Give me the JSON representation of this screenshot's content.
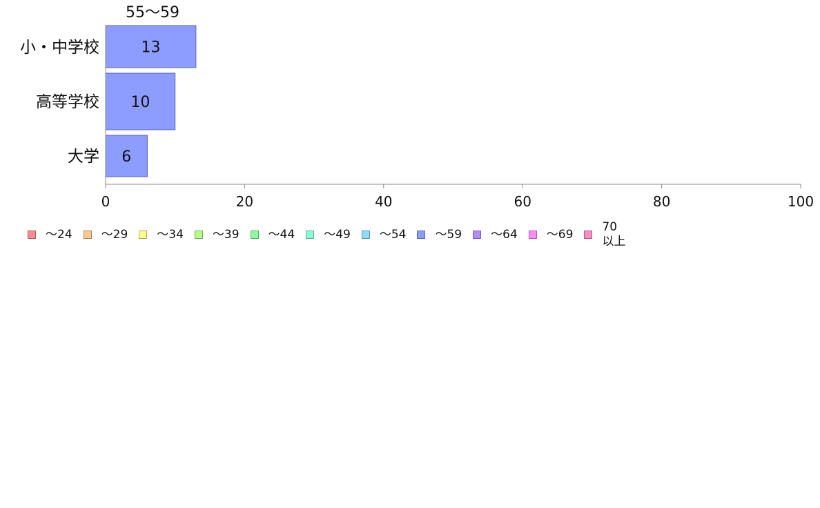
{
  "chart_data": {
    "type": "bar",
    "orientation": "horizontal",
    "stacked": true,
    "categories": [
      "小・中学校",
      "高等学校",
      "大学"
    ],
    "series": [
      {
        "name": "55〜59",
        "values": [
          13,
          10,
          6
        ],
        "color": "#8c9cff"
      }
    ],
    "series_header": "55〜59",
    "xlim": [
      0,
      100
    ],
    "xticks": [
      "0",
      "20",
      "40",
      "60",
      "80",
      "100"
    ],
    "xlabel": "",
    "ylabel": "",
    "grid": false,
    "legend_position": "bottom-left",
    "legend": [
      {
        "label": "〜24",
        "color": "#ff8c8c"
      },
      {
        "label": "〜29",
        "color": "#ffc88c"
      },
      {
        "label": "〜34",
        "color": "#ffff8c"
      },
      {
        "label": "〜39",
        "color": "#b4ff8c"
      },
      {
        "label": "〜44",
        "color": "#8cff9c"
      },
      {
        "label": "〜49",
        "color": "#8cffdc"
      },
      {
        "label": "〜54",
        "color": "#8cdcff"
      },
      {
        "label": "〜59",
        "color": "#8c9cff"
      },
      {
        "label": "〜64",
        "color": "#b48cff"
      },
      {
        "label": "〜69",
        "color": "#ff8cff"
      },
      {
        "label": "70\n以上",
        "color": "#ff8cc8"
      }
    ]
  }
}
